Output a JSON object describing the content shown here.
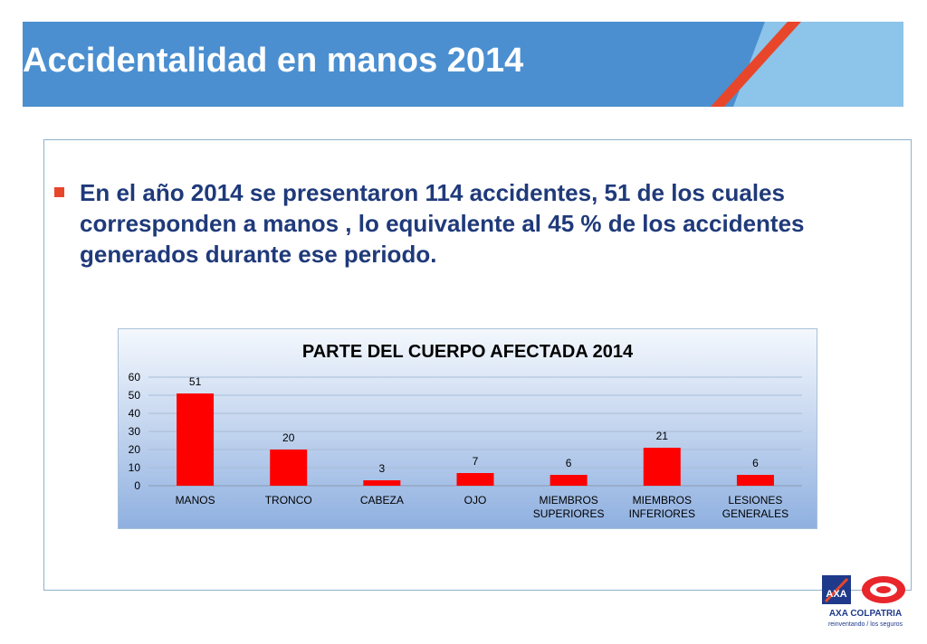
{
  "slide": {
    "title": "Accidentalidad en manos 2014",
    "paragraph": "En  el año 2014 se presentaron 114 accidentes, 51 de los cuales corresponden a manos , lo equivalente al 45 % de los accidentes generados durante ese periodo."
  },
  "brand": {
    "name": "AXA COLPATRIA",
    "axa_text": "AXA",
    "tagline": "reinventando / los seguros"
  },
  "colors": {
    "header_blue": "#4b8fd0",
    "header_light": "#8cc4ea",
    "stripe_red": "#e8462b",
    "bar_red": "#ff0000",
    "text_navy": "#1f3a7a"
  },
  "chart_data": {
    "type": "bar",
    "title": "PARTE DEL CUERPO AFECTADA 2014",
    "categories": [
      [
        "MANOS"
      ],
      [
        "TRONCO"
      ],
      [
        "CABEZA"
      ],
      [
        "OJO"
      ],
      [
        "MIEMBROS",
        "SUPERIORES"
      ],
      [
        "MIEMBROS",
        "INFERIORES"
      ],
      [
        "LESIONES",
        "GENERALES"
      ]
    ],
    "values": [
      51,
      20,
      3,
      7,
      6,
      21,
      6
    ],
    "ylim": [
      0,
      60
    ],
    "yticks": [
      0,
      10,
      20,
      30,
      40,
      50,
      60
    ],
    "grid": true,
    "legend": "none",
    "data_labels": true
  }
}
